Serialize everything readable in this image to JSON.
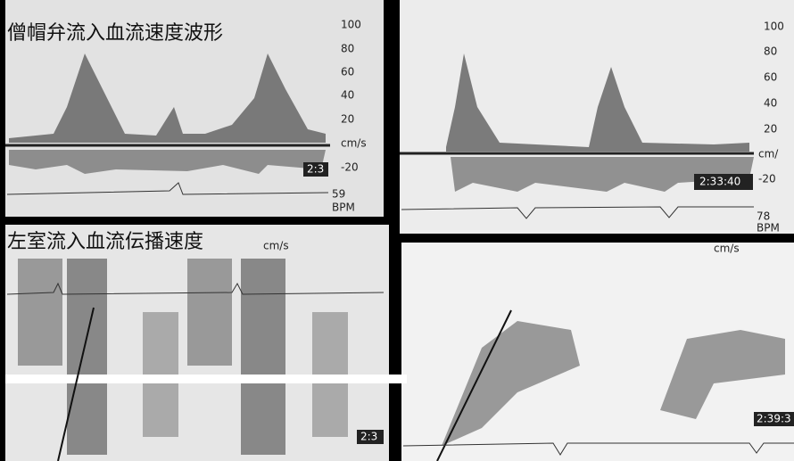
{
  "panels": [
    {
      "title": "僧帽弁流入血流速度波形",
      "scale": [
        "100",
        "80",
        "60",
        "40",
        "20",
        "cm/s",
        "-20"
      ],
      "time": "2:3",
      "heart_rate": "59",
      "heart_rate_unit": "BPM"
    },
    {
      "scale": [
        "100",
        "80",
        "60",
        "40",
        "20",
        "cm/",
        "-20"
      ],
      "time": "2:33:40",
      "heart_rate": "78",
      "heart_rate_unit": "BPM"
    },
    {
      "title": "左室流入血流伝播速度",
      "unit": "cm/s",
      "time": "2:3"
    },
    {
      "unit": "cm/s",
      "time": "2:39:3"
    }
  ]
}
